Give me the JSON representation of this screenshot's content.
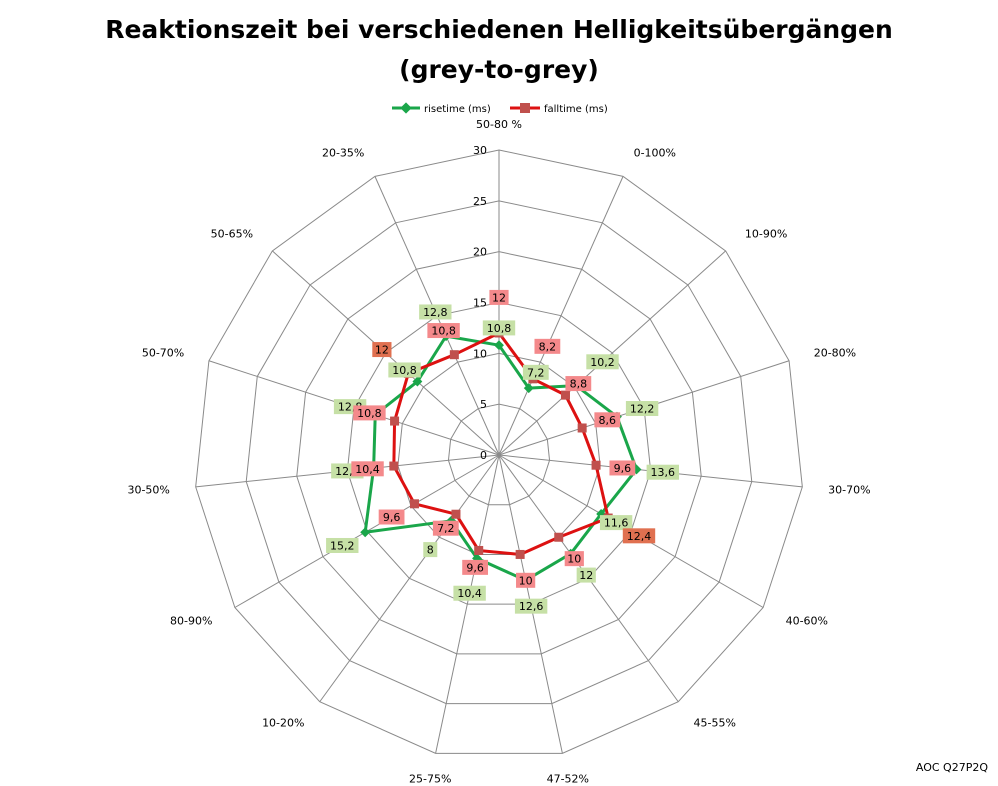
{
  "chart_data": {
    "type": "radar",
    "title_line1": "Reaktionszeit bei verschiedenen Helligkeitsübergängen",
    "title_line2": "(grey-to-grey)",
    "categories": [
      "50-80 %",
      "0-100%",
      "10-90%",
      "20-80%",
      "30-70%",
      "40-60%",
      "45-55%",
      "47-52%",
      "25-75%",
      "10-20%",
      "80-90%",
      "30-50%",
      "50-70%",
      "50-65%",
      "20-35%"
    ],
    "rlim": [
      0,
      30
    ],
    "ticks": [
      0,
      5,
      10,
      15,
      20,
      25,
      30
    ],
    "tick_labels": [
      "0",
      "5",
      "10",
      "15",
      "20",
      "25",
      "30"
    ],
    "grid": true,
    "legend_position": "top",
    "series": [
      {
        "name": "risetime (ms)",
        "color": "#1aa64a",
        "label_bg": "#c6e0a6",
        "marker": "diamond",
        "values": [
          10.8,
          7.2,
          10.2,
          12.2,
          13.6,
          11.6,
          12,
          12.6,
          10.4,
          8,
          15.2,
          12.4,
          12.8,
          10.8,
          12.8
        ],
        "labels": [
          "10,8",
          "7,2",
          "10,2",
          "12,2",
          "13,6",
          "11,6",
          "12",
          "12,6",
          "10,4",
          "8",
          "15,2",
          "12,4",
          "12,8",
          "10,8",
          "12,8"
        ]
      },
      {
        "name": "falltime (ms)",
        "color": "#dd1111",
        "label_bg": "#f4898b",
        "marker": "square",
        "values": [
          12,
          8.2,
          8.8,
          8.6,
          9.6,
          12.4,
          10,
          10,
          9.6,
          7.2,
          9.6,
          10.4,
          10.8,
          12,
          10.8
        ],
        "labels": [
          "12",
          "8,2",
          "8,8",
          "8,6",
          "9,6",
          "12,4",
          "10",
          "10",
          "9,6",
          "7,2",
          "9,6",
          "10,4",
          "10,8",
          "12",
          "10,8"
        ]
      }
    ],
    "highlight_label_bg": "#e07050"
  },
  "footer": "AOC Q27P2Q"
}
